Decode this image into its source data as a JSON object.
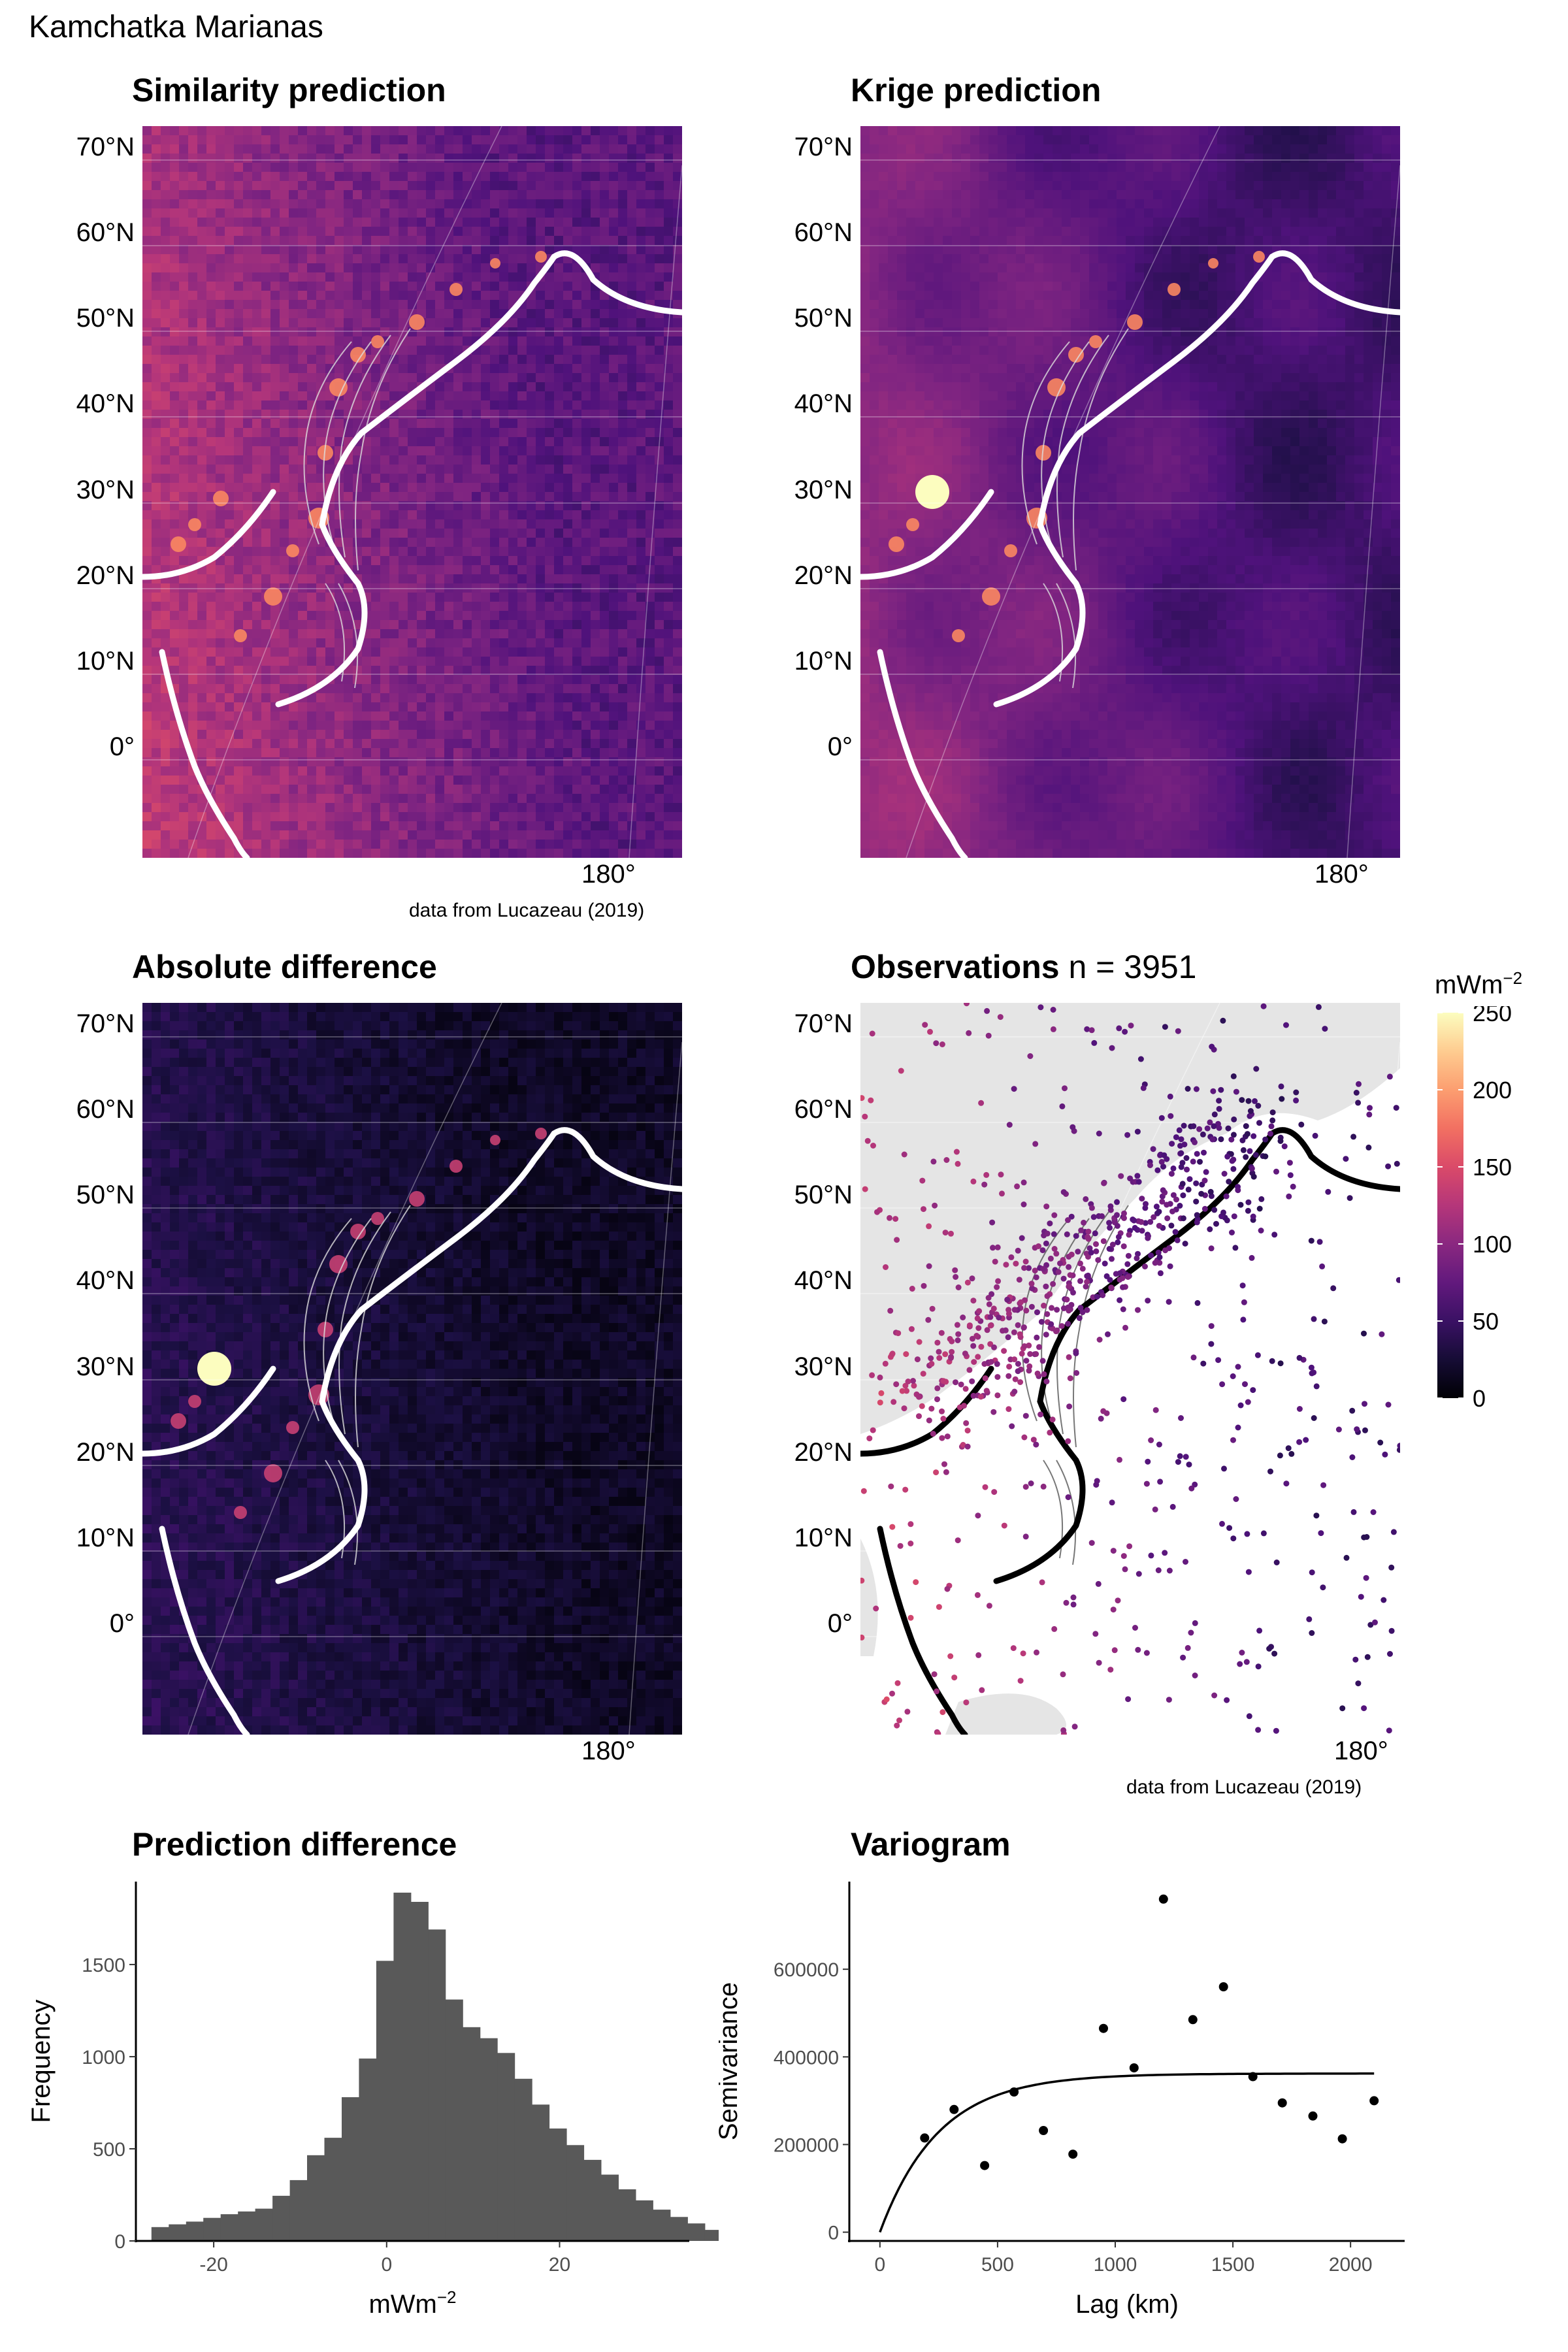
{
  "figure_title": "Kamchatka Marianas",
  "panels": {
    "similarity": {
      "title": "Similarity prediction",
      "credit": "data from Lucazeau (2019)"
    },
    "krige": {
      "title": "Krige prediction"
    },
    "difference": {
      "title": "Absolute difference"
    },
    "observations": {
      "title": "Observations",
      "subtitle": "n = 3951",
      "credit": "data from Lucazeau (2019)"
    },
    "histogram": {
      "title": "Prediction difference"
    },
    "variogram": {
      "title": "Variogram"
    }
  },
  "map_axes": {
    "lat_labels": [
      "70°N",
      "60°N",
      "50°N",
      "40°N",
      "30°N",
      "20°N",
      "10°N",
      "0°"
    ],
    "lon_label": "180°"
  },
  "colors": {
    "magma_low": "#000004",
    "magma_mid_low": "#3b0f70",
    "magma_mid": "#8c2981",
    "magma_mid_high": "#de4968",
    "magma_high": "#fe9f6d",
    "magma_top": "#fcfdbf",
    "trench_white": "#ffffff",
    "trench_black": "#000000",
    "land_grey": "#e5e5e5",
    "bar_fill": "#595959"
  },
  "chart_data": [
    {
      "type": "heatmap",
      "title": "Similarity prediction",
      "units": "mWm",
      "units_exp": "−2",
      "color_scale": "magma",
      "legend_title": "mWm",
      "legend_ticks": [
        0,
        50,
        100,
        150,
        200,
        250
      ],
      "color_range": [
        0,
        250
      ]
    },
    {
      "type": "heatmap",
      "title": "Krige prediction",
      "color_scale": "magma",
      "color_range": [
        0,
        250
      ]
    },
    {
      "type": "heatmap",
      "title": "Absolute difference",
      "color_scale": "magma",
      "color_range": [
        0,
        250
      ]
    },
    {
      "type": "scatter",
      "title": "Observations",
      "subtitle": "n = 3951",
      "count": 3951,
      "color_scale": "magma"
    },
    {
      "type": "bar",
      "title": "Prediction difference",
      "xlabel": "mWm",
      "xlabel_exp": "−2",
      "ylabel": "Frequency",
      "xlim": [
        -29,
        35
      ],
      "ylim": [
        0,
        1950
      ],
      "x_ticks": [
        -20,
        0,
        20
      ],
      "y_ticks": [
        0,
        500,
        1000,
        1500
      ],
      "bin_start": -27.2,
      "bin_width": 2.0,
      "values": [
        75,
        90,
        105,
        125,
        145,
        160,
        175,
        245,
        330,
        465,
        560,
        780,
        990,
        1520,
        1890,
        1840,
        1690,
        1310,
        1160,
        1100,
        1020,
        880,
        740,
        610,
        520,
        440,
        360,
        280,
        220,
        170,
        130,
        95,
        60,
        45,
        30
      ]
    },
    {
      "type": "scatter",
      "title": "Variogram",
      "xlabel": "Lag (km)",
      "ylabel": "Semivariance",
      "xlim": [
        -130,
        2230
      ],
      "ylim": [
        -20000,
        800000
      ],
      "x_ticks": [
        0,
        500,
        1000,
        1500,
        2000
      ],
      "y_ticks": [
        0,
        200000,
        400000,
        600000
      ],
      "points": [
        {
          "x": 190,
          "y": 215000
        },
        {
          "x": 315,
          "y": 280000
        },
        {
          "x": 445,
          "y": 152000
        },
        {
          "x": 570,
          "y": 320000
        },
        {
          "x": 695,
          "y": 232000
        },
        {
          "x": 820,
          "y": 178000
        },
        {
          "x": 950,
          "y": 465000
        },
        {
          "x": 1080,
          "y": 375000
        },
        {
          "x": 1205,
          "y": 760000
        },
        {
          "x": 1330,
          "y": 485000
        },
        {
          "x": 1460,
          "y": 560000
        },
        {
          "x": 1585,
          "y": 355000
        },
        {
          "x": 1710,
          "y": 295000
        },
        {
          "x": 1840,
          "y": 265000
        },
        {
          "x": 1965,
          "y": 213000
        },
        {
          "x": 2100,
          "y": 300000
        }
      ],
      "model": {
        "sill": 362000,
        "range": 250,
        "max_lag": 2100
      }
    }
  ]
}
